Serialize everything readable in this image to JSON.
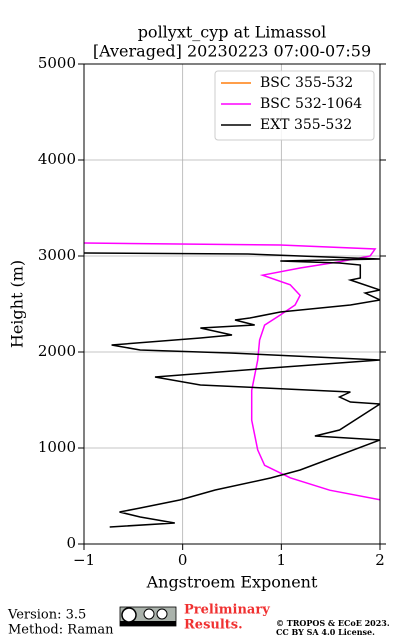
{
  "chart_data": {
    "type": "line",
    "title": "pollyxt_cyp at Limassol",
    "subtitle": "[Averaged] 20230223 07:00-07:59",
    "x_label": "Angstroem Exponent",
    "y_label": "Height (m)",
    "xlim": [
      -1,
      2
    ],
    "xticks": [
      {
        "value": -1,
        "label": "−1"
      },
      0,
      1,
      2
    ],
    "ylim": [
      0,
      5000
    ],
    "yticks": [
      0,
      1000,
      2000,
      3000,
      4000,
      5000
    ],
    "grid": true,
    "legend": "upper right",
    "series": [
      {
        "name": "BSC 355-532",
        "color": "#ff7f0e",
        "x": [],
        "y": []
      },
      {
        "name": "BSC 532-1064",
        "color": "#ff00ff",
        "x": [
          -1,
          0.99,
          1.95,
          1.9,
          1.59,
          1.19,
          0.81,
          1.09,
          1.19,
          1.14,
          0.99,
          0.83,
          0.78,
          0.76,
          0.7,
          0.7,
          0.76,
          0.83,
          1.09,
          1.49,
          2.0
        ],
        "y": [
          3135,
          3115,
          3073,
          3000,
          2940,
          2875,
          2800,
          2700,
          2590,
          2490,
          2385,
          2280,
          2125,
          1915,
          1600,
          1290,
          980,
          820,
          690,
          560,
          460
        ]
      },
      {
        "name": "EXT 355-532",
        "color": "#000000",
        "x": [
          -1,
          0.66,
          2.0,
          0.99,
          1.59,
          1.8,
          1.8,
          1.7,
          2.0,
          1.85,
          2.0,
          1.7,
          0.99,
          0.68,
          0.53,
          0.73,
          0.18,
          0.5,
          0.18,
          -0.72,
          -0.43,
          0.48,
          2.0,
          0.89,
          -0.28,
          0.18,
          1.7,
          1.59,
          1.7,
          2.0,
          1.59,
          1.34,
          2.0,
          1.19,
          0.89,
          0.33,
          -0.03,
          -0.43,
          -0.64,
          -0.43,
          -0.08,
          -0.74
        ],
        "y": [
          3031,
          3021,
          2969,
          2948,
          2927,
          2906,
          2771,
          2750,
          2646,
          2615,
          2542,
          2490,
          2417,
          2354,
          2333,
          2281,
          2250,
          2177,
          2146,
          2073,
          2021,
          1990,
          1917,
          1833,
          1740,
          1656,
          1583,
          1531,
          1479,
          1458,
          1188,
          1125,
          1083,
          771,
          688,
          563,
          458,
          375,
          333,
          281,
          219,
          177
        ]
      }
    ]
  },
  "footer": {
    "version": "Version: 3.5",
    "method": "Method: Raman",
    "preliminary": [
      "Preliminary",
      "Results."
    ],
    "copyright": "© TROPOS & ECoE 2023.",
    "license": "CC BY SA 4.0 License."
  }
}
